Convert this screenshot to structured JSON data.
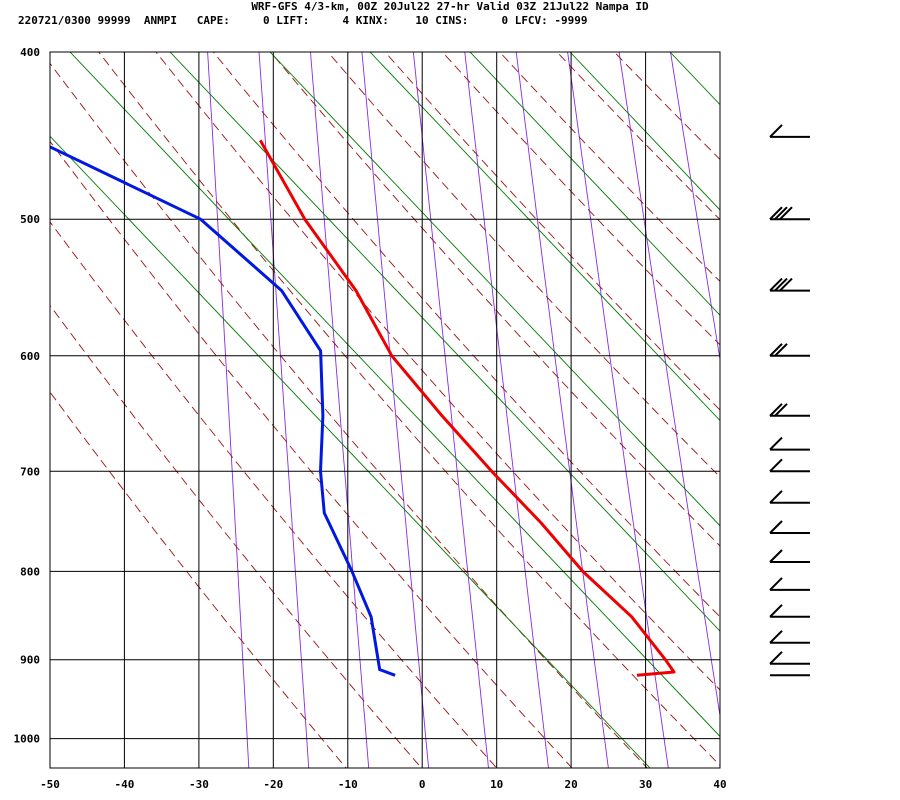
{
  "title": "WRF-GFS 4/3-km, 00Z 20Jul22 27-hr Valid 03Z 21Jul22 Nampa ID",
  "header": "220721/0300 99999  ANMPI   CAPE:     0 LIFT:     4 KINX:    10 CINS:     0 LFCV: -9999",
  "colors": {
    "temperature": "#ee0000",
    "dewpoint": "#0018e0",
    "dry_adiabat": "#9b1010",
    "moist_adiabat": "#8a2be2",
    "mixing_ratio": "#007a00",
    "grid": "#000000",
    "wind_barb": "#000000"
  },
  "chart_data": {
    "type": "line",
    "skew_t": true,
    "x_axis_label_values": [
      "-50",
      "-40",
      "-30",
      "-20",
      "-10",
      "0",
      "10",
      "20",
      "30",
      "40"
    ],
    "y_axis_label_values": [
      "400",
      "500",
      "600",
      "700",
      "800",
      "900",
      "1000"
    ],
    "x_range": [
      -50,
      40
    ],
    "y_range": [
      400,
      1040
    ],
    "y_scale": "log",
    "grid": true,
    "temperature_profile": [
      {
        "p": 919,
        "t": 30
      },
      {
        "p": 915,
        "t": 35
      },
      {
        "p": 900,
        "t": 34
      },
      {
        "p": 850,
        "t": 30
      },
      {
        "p": 800,
        "t": 24
      },
      {
        "p": 750,
        "t": 19
      },
      {
        "p": 700,
        "t": 13
      },
      {
        "p": 650,
        "t": 7
      },
      {
        "p": 600,
        "t": 1
      },
      {
        "p": 550,
        "t": -3
      },
      {
        "p": 500,
        "t": -9
      },
      {
        "p": 450,
        "t": -14
      }
    ],
    "dewpoint_profile": [
      {
        "p": 919,
        "td": -2.5
      },
      {
        "p": 912,
        "td": -4.5
      },
      {
        "p": 850,
        "td": -5
      },
      {
        "p": 800,
        "td": -7
      },
      {
        "p": 740,
        "td": -10
      },
      {
        "p": 700,
        "td": -10
      },
      {
        "p": 650,
        "td": -9
      },
      {
        "p": 596,
        "td": -8.5
      },
      {
        "p": 550,
        "td": -13
      },
      {
        "p": 500,
        "td": -23
      },
      {
        "p": 448,
        "td": -45
      }
    ],
    "wind_barbs": [
      {
        "p": 448,
        "barbs": 1
      },
      {
        "p": 500,
        "barbs": 3
      },
      {
        "p": 550,
        "barbs": 3
      },
      {
        "p": 600,
        "barbs": 2
      },
      {
        "p": 650,
        "barbs": 2
      },
      {
        "p": 680,
        "barbs": 1
      },
      {
        "p": 700,
        "barbs": 1
      },
      {
        "p": 730,
        "barbs": 1
      },
      {
        "p": 760,
        "barbs": 1
      },
      {
        "p": 790,
        "barbs": 1
      },
      {
        "p": 820,
        "barbs": 1
      },
      {
        "p": 850,
        "barbs": 1
      },
      {
        "p": 880,
        "barbs": 1
      },
      {
        "p": 905,
        "barbs": 1
      },
      {
        "p": 919,
        "barbs": 0
      }
    ],
    "dry_adiabats_theta_K": [
      260,
      270,
      280,
      290,
      300,
      310,
      320,
      330,
      340,
      350,
      360,
      370,
      380,
      390,
      400
    ],
    "moist_adiabats_thetae_K": [
      250,
      258,
      266,
      274,
      282,
      290,
      298,
      306,
      314,
      322,
      330,
      338,
      346,
      354
    ],
    "mixing_ratio_lines_gkg": [
      0.5,
      1,
      2,
      4,
      8,
      16,
      32
    ]
  }
}
